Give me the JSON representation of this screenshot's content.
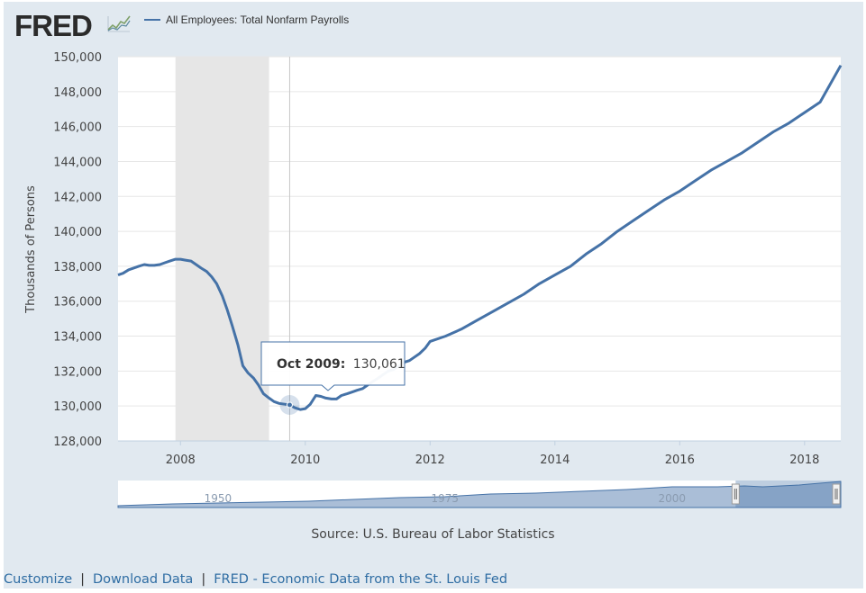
{
  "logo": {
    "text": "FRED",
    "icon": "fred-graph-icon"
  },
  "legend": {
    "label": "All Employees: Total Nonfarm Payrolls",
    "color": "#4572a7"
  },
  "source": "Source: U.S. Bureau of Labor Statistics",
  "footer": {
    "customize": "Customize",
    "download": "Download Data",
    "fred": "FRED - Economic Data from the St. Louis Fed",
    "separator": "|"
  },
  "tooltip": {
    "label": "Oct 2009:",
    "value": "130,061",
    "x": 2009.75,
    "y": 130061
  },
  "chart_data": {
    "type": "line",
    "title": "All Employees: Total Nonfarm Payrolls",
    "xlabel": "",
    "ylabel": "Thousands of Persons",
    "xlim": [
      2007.0,
      2018.58
    ],
    "ylim": [
      128000,
      150000
    ],
    "y_ticks": [
      128000,
      130000,
      132000,
      134000,
      136000,
      138000,
      140000,
      142000,
      144000,
      146000,
      148000,
      150000
    ],
    "y_tick_labels": [
      "128,000",
      "130,000",
      "132,000",
      "134,000",
      "136,000",
      "138,000",
      "140,000",
      "142,000",
      "144,000",
      "146,000",
      "148,000",
      "150,000"
    ],
    "x_ticks": [
      2008,
      2010,
      2012,
      2014,
      2016,
      2018
    ],
    "x_tick_labels": [
      "2008",
      "2010",
      "2012",
      "2014",
      "2016",
      "2018"
    ],
    "recession": [
      2007.92,
      2009.42
    ],
    "line_color": "#4572a7",
    "x": [
      2007.0,
      2007.08,
      2007.17,
      2007.25,
      2007.33,
      2007.42,
      2007.5,
      2007.58,
      2007.67,
      2007.75,
      2007.83,
      2007.92,
      2008.0,
      2008.08,
      2008.17,
      2008.25,
      2008.33,
      2008.42,
      2008.5,
      2008.58,
      2008.67,
      2008.75,
      2008.83,
      2008.92,
      2009.0,
      2009.08,
      2009.17,
      2009.25,
      2009.33,
      2009.42,
      2009.5,
      2009.58,
      2009.67,
      2009.75,
      2009.83,
      2009.92,
      2010.0,
      2010.08,
      2010.17,
      2010.25,
      2010.33,
      2010.42,
      2010.5,
      2010.58,
      2010.67,
      2010.75,
      2010.83,
      2010.92,
      2011.0,
      2011.08,
      2011.17,
      2011.25,
      2011.33,
      2011.42,
      2011.5,
      2011.58,
      2011.67,
      2011.75,
      2011.83,
      2011.92,
      2012.0,
      2012.25,
      2012.5,
      2012.75,
      2013.0,
      2013.25,
      2013.5,
      2013.75,
      2014.0,
      2014.25,
      2014.5,
      2014.75,
      2015.0,
      2015.25,
      2015.5,
      2015.75,
      2016.0,
      2016.25,
      2016.5,
      2016.75,
      2017.0,
      2017.25,
      2017.5,
      2017.75,
      2018.0,
      2018.25,
      2018.58
    ],
    "y": [
      137500,
      137600,
      137800,
      137900,
      138000,
      138100,
      138050,
      138050,
      138100,
      138200,
      138300,
      138400,
      138400,
      138350,
      138300,
      138100,
      137900,
      137700,
      137400,
      137000,
      136300,
      135500,
      134600,
      133500,
      132300,
      131900,
      131600,
      131200,
      130700,
      130450,
      130250,
      130150,
      130100,
      130061,
      129900,
      129800,
      129850,
      130100,
      130600,
      130550,
      130450,
      130400,
      130400,
      130600,
      130700,
      130800,
      130900,
      131000,
      131200,
      131400,
      131600,
      131800,
      132000,
      132100,
      132300,
      132500,
      132600,
      132800,
      133000,
      133300,
      133700,
      134000,
      134400,
      134900,
      135400,
      135900,
      136400,
      137000,
      137500,
      138000,
      138700,
      139300,
      140000,
      140600,
      141200,
      141800,
      142300,
      142900,
      143500,
      144000,
      144500,
      145100,
      145700,
      146200,
      146800,
      147400,
      149500
    ],
    "navigator": {
      "labels": [
        "1950",
        "1975",
        "2000"
      ],
      "label_x": [
        1950,
        1975,
        2000
      ],
      "range": [
        1939,
        2018.58
      ],
      "selected": [
        2007.0,
        2018.58
      ]
    }
  }
}
